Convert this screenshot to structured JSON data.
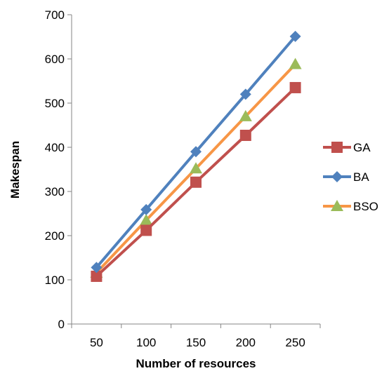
{
  "chart_data": {
    "type": "line",
    "title": "",
    "xlabel": "Number of resources",
    "ylabel": "Makespan",
    "categories": [
      "50",
      "100",
      "150",
      "200",
      "250"
    ],
    "ylim": [
      0,
      700
    ],
    "yticks": [
      "0",
      "100",
      "200",
      "300",
      "400",
      "500",
      "600",
      "700"
    ],
    "grid": false,
    "legend_position": "right",
    "series": [
      {
        "name": "GA",
        "values": [
          108,
          212,
          321,
          427,
          535
        ],
        "color": "#c0504d",
        "marker": "square"
      },
      {
        "name": "BA",
        "values": [
          128,
          259,
          390,
          520,
          651
        ],
        "color": "#4f81bd",
        "marker": "diamond"
      },
      {
        "name": "BSO",
        "values": [
          116,
          235,
          352,
          470,
          588
        ],
        "color": "#f79646",
        "marker": "triangle",
        "marker_color": "#9bbb59"
      }
    ]
  }
}
